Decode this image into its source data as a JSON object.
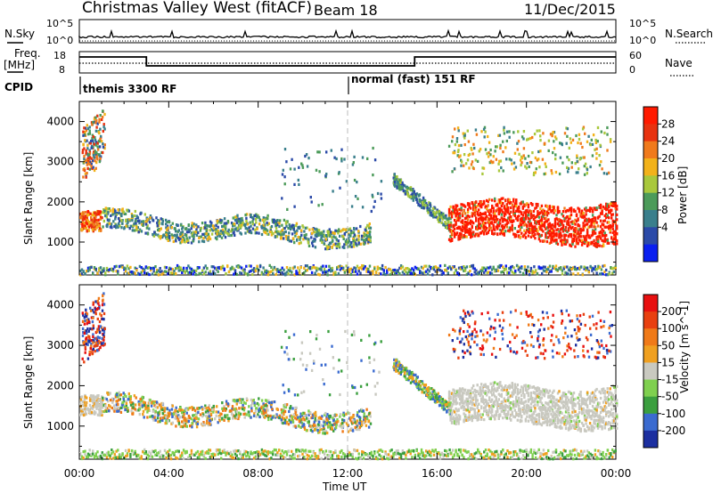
{
  "header": {
    "title": "Christmas Valley West (fitACF)",
    "beam": "Beam 18",
    "date": "11/Dec/2015"
  },
  "top_panels": {
    "nsky_label": "N.Sky",
    "nsearch_label": "N.Search",
    "nsky_ticks": [
      "10^5",
      "10^0"
    ],
    "nsearch_ticks": [
      "10^5",
      "10^0"
    ],
    "freq_label_1": "Freq.",
    "freq_label_2": "[MHz]",
    "freq_ticks": [
      "18",
      "8"
    ],
    "nave_label": "Nave",
    "nave_ticks": [
      "60",
      "0"
    ],
    "cpid_label": "CPID",
    "cpid_segments": [
      {
        "label": "themis 3300 RF"
      },
      {
        "label": "normal (fast) 151 RF"
      }
    ]
  },
  "chart_data": [
    {
      "type": "heatmap",
      "name": "power",
      "ylabel": "Slant Range [km]",
      "xlabel": "Time UT",
      "x_ticks": [
        "00:00",
        "04:00",
        "08:00",
        "12:00",
        "16:00",
        "20:00",
        "00:00"
      ],
      "x_range_hours": [
        0,
        24
      ],
      "y_ticks": [
        1000,
        2000,
        3000,
        4000
      ],
      "ylim": [
        180,
        4500
      ],
      "colorbar_label": "Power [dB]",
      "colorbar_ticks": [
        4,
        8,
        12,
        16,
        20,
        24,
        28
      ],
      "colorbar_colors": [
        "#0a1ff0",
        "#2b4aa8",
        "#3a7f8c",
        "#4c9b5a",
        "#a9c83c",
        "#f2b21a",
        "#f07a1c",
        "#e8320f",
        "#ff1a00"
      ]
    },
    {
      "type": "heatmap",
      "name": "velocity",
      "ylabel": "Slant Range [km]",
      "xlabel": "Time UT",
      "x_ticks": [
        "00:00",
        "04:00",
        "08:00",
        "12:00",
        "16:00",
        "20:00",
        "00:00"
      ],
      "x_range_hours": [
        0,
        24
      ],
      "y_ticks": [
        1000,
        2000,
        3000,
        4000
      ],
      "ylim": [
        180,
        4500
      ],
      "colorbar_label": "Velocity [m s^-1]",
      "colorbar_ticks": [
        "200",
        "100",
        "50",
        "15",
        "-15",
        "-50",
        "-100",
        "-200"
      ],
      "colorbar_colors": [
        "#1c2fa0",
        "#3b6bd0",
        "#3b9f3f",
        "#7fd04f",
        "#c9c9c0",
        "#f0a020",
        "#f07a18",
        "#e84010",
        "#e81010"
      ]
    }
  ],
  "divider_time": "12:00"
}
